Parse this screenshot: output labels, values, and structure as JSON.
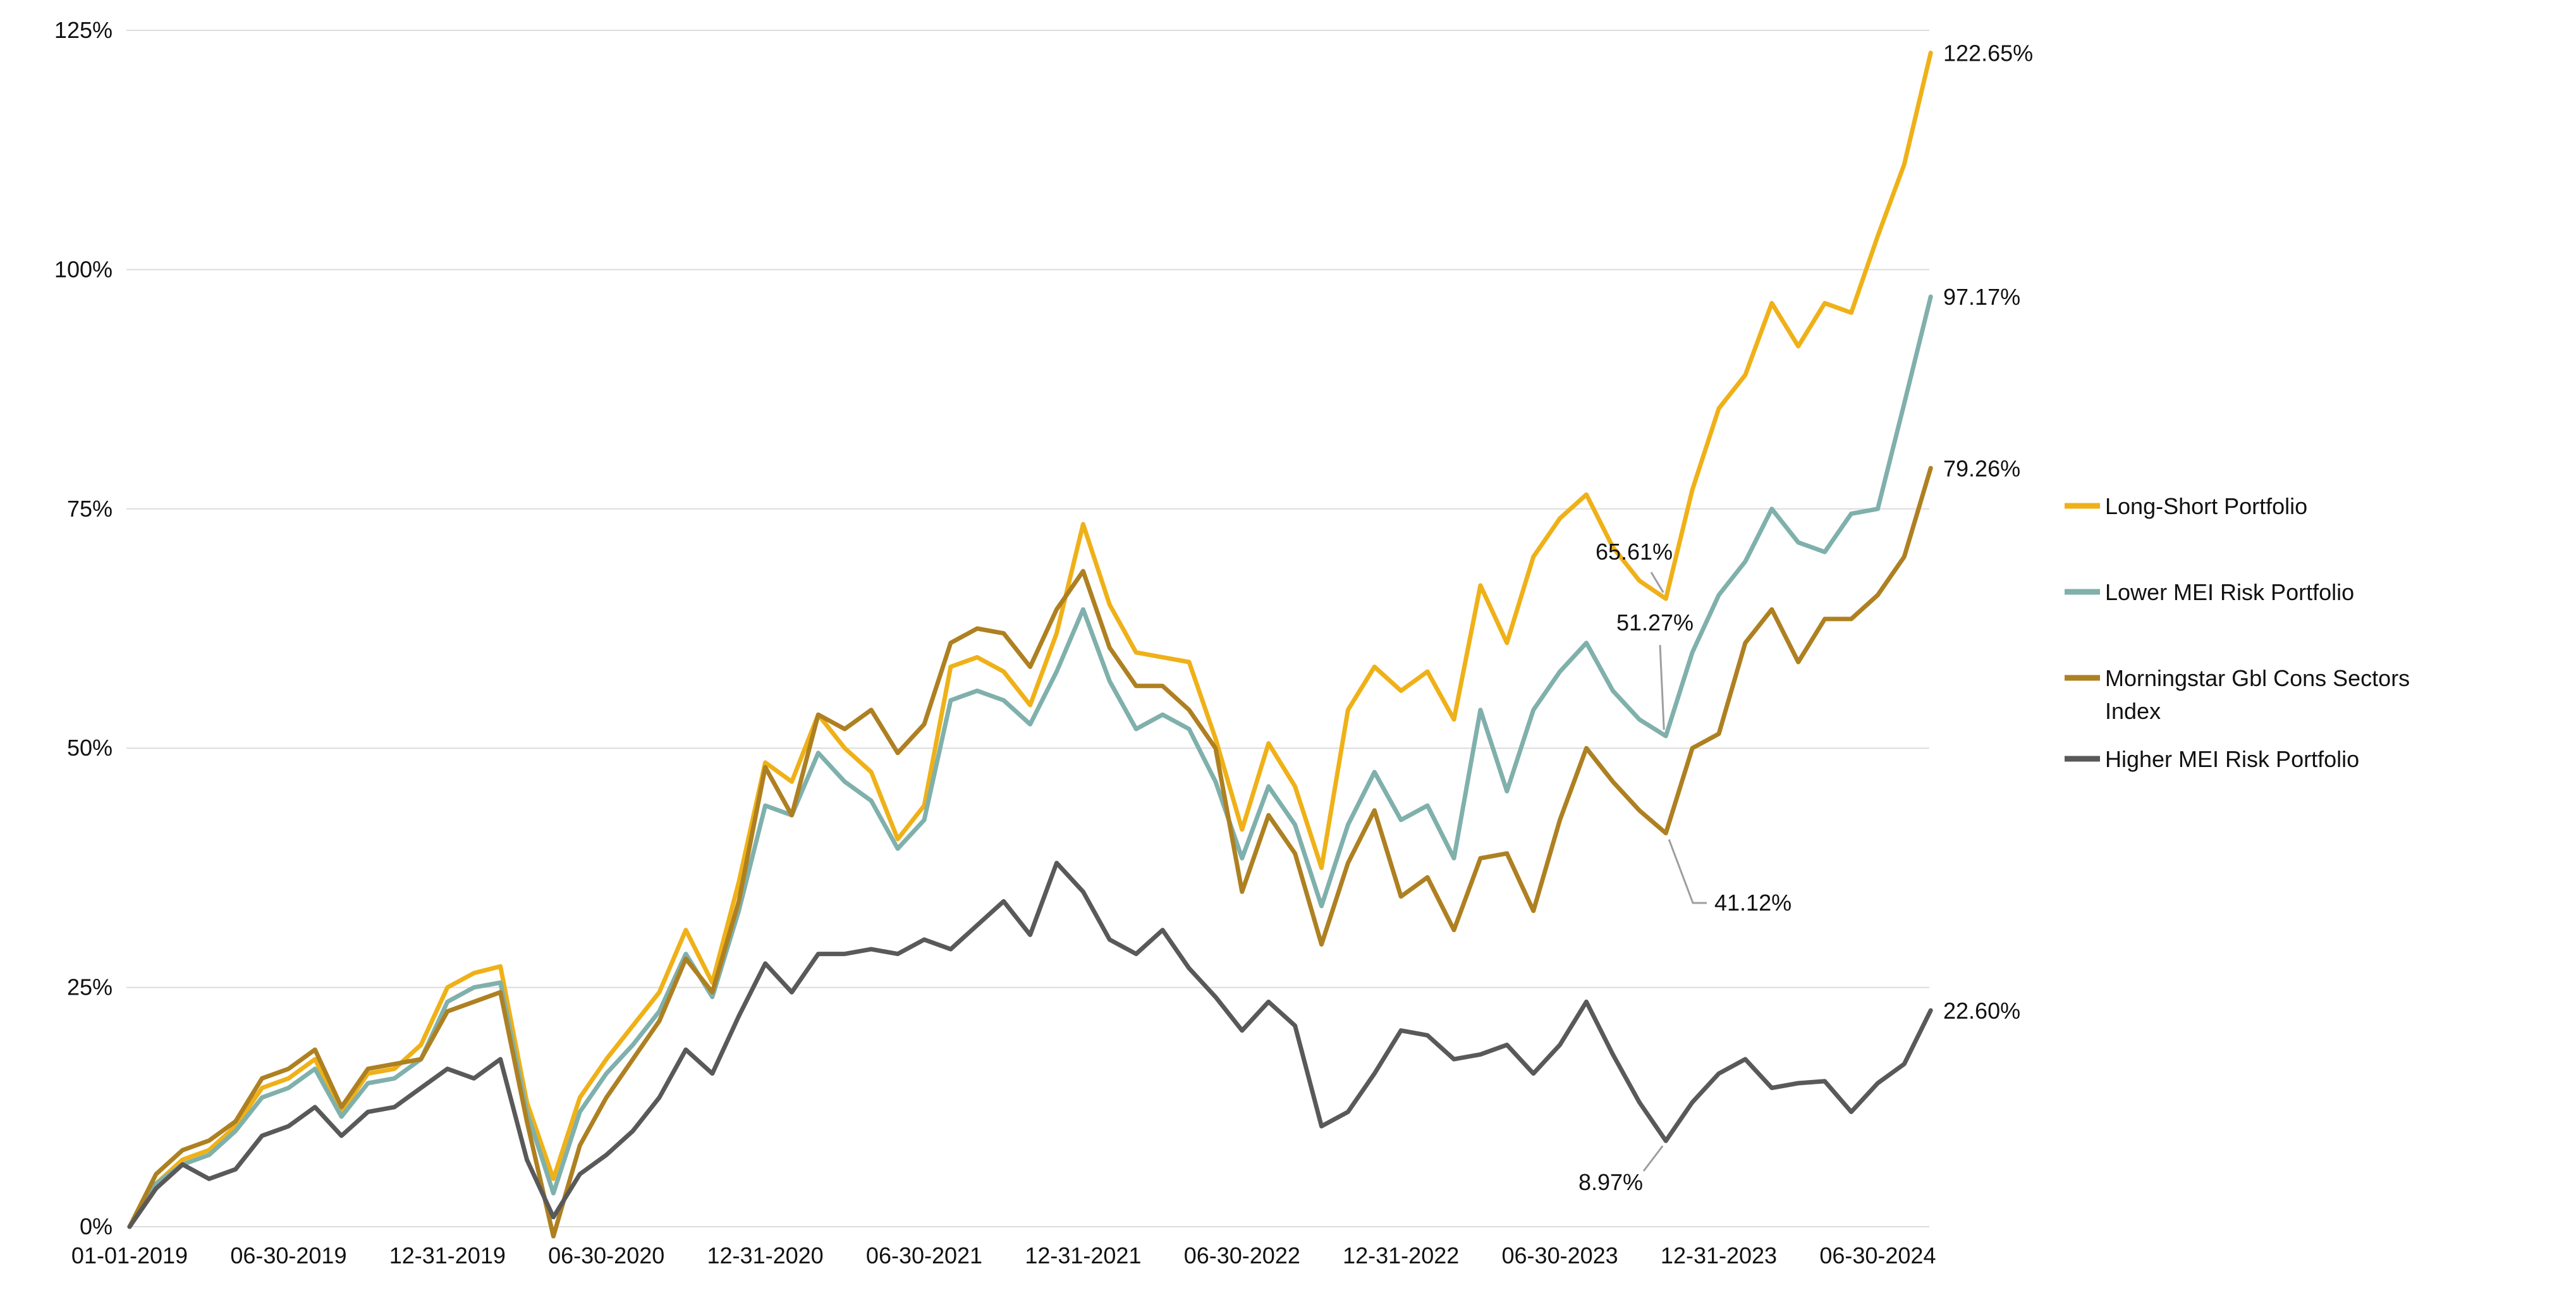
{
  "chart_data": {
    "type": "line",
    "grid": "horizontal",
    "legend_position": "right",
    "x_axis": {
      "tick_labels": [
        "01-01-2019",
        "06-30-2019",
        "12-31-2019",
        "06-30-2020",
        "12-31-2020",
        "06-30-2021",
        "12-31-2021",
        "06-30-2022",
        "12-31-2022",
        "06-30-2023",
        "12-31-2023",
        "06-30-2024"
      ]
    },
    "y_axis": {
      "tick_labels": [
        "0%",
        "25%",
        "50%",
        "75%",
        "100%",
        "125%"
      ],
      "tick_values": [
        0,
        25,
        50,
        75,
        100,
        125
      ],
      "ylim": [
        0,
        125
      ]
    },
    "months": [
      "2019-01-01",
      "2019-01-31",
      "2019-02-28",
      "2019-03-31",
      "2019-04-30",
      "2019-05-31",
      "2019-06-30",
      "2019-07-31",
      "2019-08-31",
      "2019-09-30",
      "2019-10-31",
      "2019-11-30",
      "2019-12-31",
      "2020-01-31",
      "2020-02-29",
      "2020-03-31",
      "2020-04-30",
      "2020-05-31",
      "2020-06-30",
      "2020-07-31",
      "2020-08-31",
      "2020-09-30",
      "2020-10-31",
      "2020-11-30",
      "2020-12-31",
      "2021-01-31",
      "2021-02-28",
      "2021-03-31",
      "2021-04-30",
      "2021-05-31",
      "2021-06-30",
      "2021-07-31",
      "2021-08-31",
      "2021-09-30",
      "2021-10-31",
      "2021-11-30",
      "2021-12-31",
      "2022-01-31",
      "2022-02-28",
      "2022-03-31",
      "2022-04-30",
      "2022-05-31",
      "2022-06-30",
      "2022-07-31",
      "2022-08-31",
      "2022-09-30",
      "2022-10-31",
      "2022-11-30",
      "2022-12-31",
      "2023-01-31",
      "2023-02-28",
      "2023-03-31",
      "2023-04-30",
      "2023-05-31",
      "2023-06-30",
      "2023-07-31",
      "2023-08-31",
      "2023-09-30",
      "2023-10-31",
      "2023-11-30",
      "2023-12-31",
      "2024-01-31",
      "2024-02-29",
      "2024-03-31",
      "2024-04-30",
      "2024-05-31",
      "2024-06-30",
      "2024-07-31",
      "2024-08-31"
    ],
    "series": [
      {
        "name": "Long-Short Portfolio",
        "color": "#EFB118",
        "end_label": "122.65%",
        "values": [
          0,
          4.5,
          7,
          8,
          10.5,
          14.5,
          15.5,
          17.5,
          12,
          16,
          16.5,
          19,
          25,
          26.5,
          27.2,
          13,
          5,
          13.5,
          17.5,
          21,
          24.5,
          31,
          25.5,
          36,
          48.5,
          46.5,
          53.5,
          50,
          47.5,
          40.5,
          44,
          58.5,
          59.5,
          58,
          54.5,
          62,
          73.4,
          65,
          60,
          59.5,
          59,
          51,
          41.5,
          50.5,
          46,
          37.5,
          54,
          58.5,
          56,
          58,
          53,
          67,
          61,
          70,
          74,
          76.5,
          71,
          67.5,
          65.61,
          77,
          85.5,
          89,
          96.5,
          92,
          96.5,
          95.5,
          103.5,
          111,
          122.65
        ]
      },
      {
        "name": "Lower MEI Risk Portfolio",
        "color": "#7FB0AC",
        "end_label": "97.17%",
        "values": [
          0,
          4.5,
          6.5,
          7.5,
          10,
          13.5,
          14.5,
          16.5,
          11.5,
          15,
          15.5,
          17.5,
          23.5,
          25,
          25.5,
          12,
          3.5,
          12,
          16,
          19,
          22.5,
          28.5,
          24,
          33,
          44,
          43,
          49.5,
          46.5,
          44.5,
          39.5,
          42.5,
          55,
          56,
          55,
          52.5,
          58,
          64.5,
          57,
          52,
          53.5,
          52,
          46.5,
          38.5,
          46,
          42,
          33.5,
          42,
          47.5,
          42.5,
          44,
          38.5,
          54,
          45.5,
          54,
          58,
          61,
          56,
          53,
          51.27,
          60,
          66,
          69.5,
          75,
          71.5,
          70.5,
          74.5,
          75,
          86,
          97.17
        ]
      },
      {
        "name": "Morningstar Gbl Cons Sectors Index",
        "name_wrapped": [
          "Morningstar Gbl Cons Sectors",
          "Index"
        ],
        "color": "#AE8021",
        "end_label": "79.26%",
        "values": [
          0,
          5.5,
          8,
          9,
          11,
          15.5,
          16.5,
          18.5,
          12.5,
          16.5,
          17,
          17.5,
          22.5,
          23.5,
          24.5,
          11,
          -1,
          8.5,
          13.5,
          17.5,
          21.5,
          28,
          24.5,
          34,
          48,
          43,
          53.5,
          52,
          54,
          49.5,
          52.5,
          61,
          62.5,
          62,
          58.5,
          64.5,
          68.5,
          60.5,
          56.5,
          56.5,
          54,
          50,
          35,
          43,
          39,
          29.5,
          38,
          43.5,
          34.5,
          36.5,
          31,
          38.5,
          39,
          33,
          42.5,
          50,
          46.5,
          43.5,
          41.12,
          50,
          51.5,
          61,
          64.5,
          59,
          63.5,
          63.5,
          66,
          70,
          79.26
        ]
      },
      {
        "name": "Higher MEI Risk Portfolio",
        "color": "#595959",
        "end_label": "22.60%",
        "values": [
          0,
          4,
          6.5,
          5,
          6,
          9.5,
          10.5,
          12.5,
          9.5,
          12,
          12.5,
          14.5,
          16.5,
          15.5,
          17.5,
          7,
          1,
          5.5,
          7.5,
          10,
          13.5,
          18.5,
          16,
          22,
          27.5,
          24.5,
          28.5,
          28.5,
          29,
          28.5,
          30,
          29,
          31.5,
          34,
          30.5,
          38,
          35,
          30,
          28.5,
          31,
          27,
          24,
          20.5,
          23.5,
          21,
          10.5,
          12,
          16,
          20.5,
          20,
          17.5,
          18,
          19,
          16,
          19,
          23.5,
          18,
          13,
          8.97,
          13,
          16,
          17.5,
          14.5,
          15,
          15.2,
          12,
          15,
          17,
          22.6
        ]
      }
    ],
    "annotations": [
      {
        "series": "Long-Short Portfolio",
        "month": "2023-10-31",
        "label": "65.61%"
      },
      {
        "series": "Lower MEI Risk Portfolio",
        "month": "2023-10-31",
        "label": "51.27%"
      },
      {
        "series": "Morningstar Gbl Cons Sectors Index",
        "month": "2023-10-31",
        "label": "41.12%"
      },
      {
        "series": "Higher MEI Risk Portfolio",
        "month": "2023-10-31",
        "label": "8.97%"
      }
    ]
  },
  "colors": {
    "background": "#ffffff",
    "gridline": "#dcdcdc",
    "text": "#111111",
    "callout_line": "#9e9e9e"
  }
}
